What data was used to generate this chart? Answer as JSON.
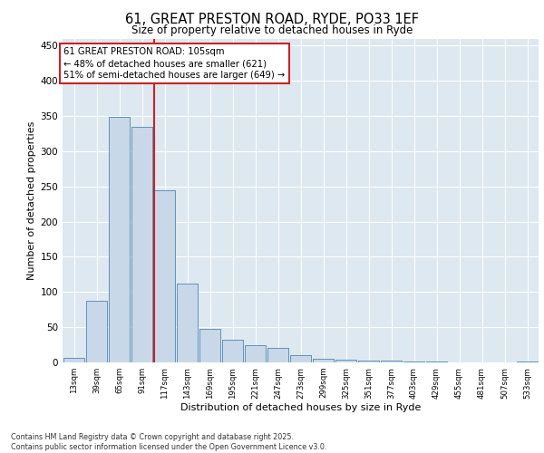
{
  "title_line1": "61, GREAT PRESTON ROAD, RYDE, PO33 1EF",
  "title_line2": "Size of property relative to detached houses in Ryde",
  "xlabel": "Distribution of detached houses by size in Ryde",
  "ylabel": "Number of detached properties",
  "bar_color": "#c8d8e8",
  "bar_edge_color": "#5b8db8",
  "bg_color": "#dde8f0",
  "grid_color": "white",
  "categories": [
    "13sqm",
    "39sqm",
    "65sqm",
    "91sqm",
    "117sqm",
    "143sqm",
    "169sqm",
    "195sqm",
    "221sqm",
    "247sqm",
    "273sqm",
    "299sqm",
    "325sqm",
    "351sqm",
    "377sqm",
    "403sqm",
    "429sqm",
    "455sqm",
    "481sqm",
    "507sqm",
    "533sqm"
  ],
  "values": [
    6,
    88,
    349,
    335,
    245,
    112,
    48,
    32,
    25,
    20,
    10,
    5,
    4,
    3,
    2,
    1,
    1,
    0,
    0,
    0,
    1
  ],
  "vline_x": 3.52,
  "vline_color": "#cc2222",
  "annotation_text": "61 GREAT PRESTON ROAD: 105sqm\n← 48% of detached houses are smaller (621)\n51% of semi-detached houses are larger (649) →",
  "annotation_box_color": "white",
  "annotation_box_edge": "#cc2222",
  "footer_text": "Contains HM Land Registry data © Crown copyright and database right 2025.\nContains public sector information licensed under the Open Government Licence v3.0.",
  "ylim": [
    0,
    460
  ],
  "yticks": [
    0,
    50,
    100,
    150,
    200,
    250,
    300,
    350,
    400,
    450
  ]
}
